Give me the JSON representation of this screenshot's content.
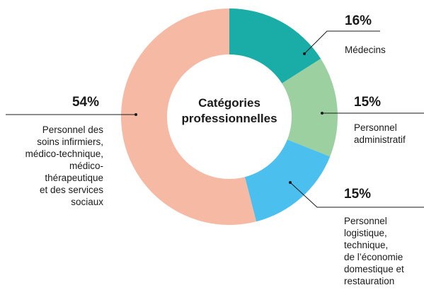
{
  "chart_data": {
    "type": "donut",
    "title": "Catégories\nprofessionnelles",
    "categories": [
      "Médecins",
      "Personnel\nadministratif",
      "Personnel\nlogistique,\ntechnique,\nde l’économie\ndomestique et\nrestauration",
      "Personnel des\nsoins infirmiers,\nmédico-technique,\nmédico-\nthérapeutique\net des services\nsociaux"
    ],
    "values": [
      16,
      15,
      15,
      54
    ],
    "value_labels": [
      "16%",
      "15%",
      "15%",
      "54%"
    ],
    "colors": [
      "#1aada8",
      "#9dd0a0",
      "#4bbfee",
      "#f5b9a4"
    ]
  }
}
